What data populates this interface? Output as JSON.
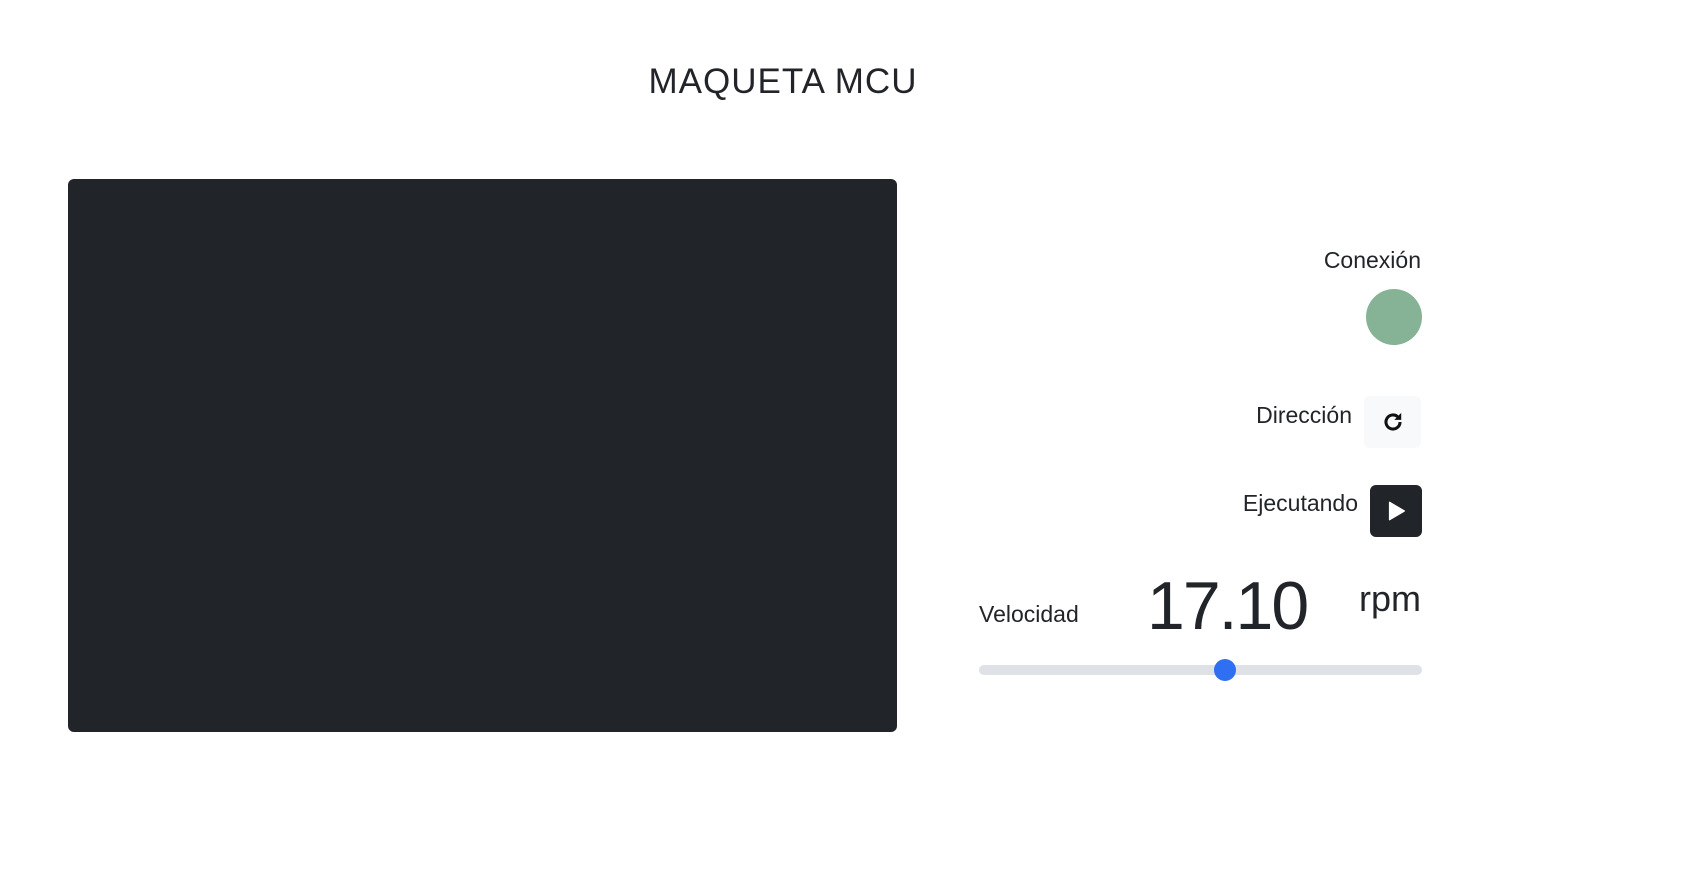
{
  "header": {
    "title": "MAQUETA MCU"
  },
  "controls": {
    "connection": {
      "label": "Conexión",
      "status_color": "#86b396"
    },
    "direction": {
      "label": "Dirección",
      "icon": "rotate-clockwise-icon"
    },
    "running": {
      "label": "Ejecutando",
      "icon": "play-icon"
    },
    "speed": {
      "label": "Velocidad",
      "value": "17.10",
      "unit": "rpm",
      "slider_fraction": 0.555,
      "accent_color": "#2f6ff2"
    }
  },
  "colors": {
    "viewport_background": "#212529",
    "text": "#212529"
  }
}
